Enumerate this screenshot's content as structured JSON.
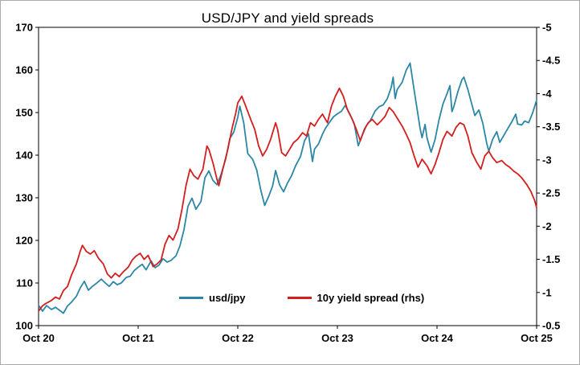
{
  "chart_data": {
    "type": "line",
    "title": "USD/JPY and yield spreads",
    "grid": false,
    "legend_position": "inside-bottom-center",
    "x_axis": {
      "min": 0,
      "max": 5,
      "ticks": [
        0,
        1,
        2,
        3,
        4,
        5
      ],
      "labels": [
        "Oct 20",
        "Oct 21",
        "Oct 22",
        "Oct 23",
        "Oct 24",
        "Oct 25"
      ]
    },
    "left_axis": {
      "min": 100,
      "max": 170,
      "ticks": [
        100,
        110,
        120,
        130,
        140,
        150,
        160,
        170
      ],
      "labels": [
        "100",
        "110",
        "120",
        "130",
        "140",
        "150",
        "160",
        "170"
      ]
    },
    "right_axis": {
      "min": -0.5,
      "max": -5,
      "ticks": [
        -0.5,
        -1,
        -1.5,
        -2,
        -2.5,
        -3,
        -3.5,
        -4,
        -4.5,
        -5
      ],
      "labels": [
        "-0.5",
        "-1",
        "-1.5",
        "-2",
        "-2.5",
        "-3",
        "-3.5",
        "-4",
        "-4.5",
        "-5"
      ]
    },
    "series": [
      {
        "name": "usd/jpy",
        "axis": "left",
        "color": "#2b87a5",
        "points": [
          [
            0.0,
            104.8
          ],
          [
            0.04,
            103.4
          ],
          [
            0.08,
            104.7
          ],
          [
            0.13,
            103.8
          ],
          [
            0.17,
            104.3
          ],
          [
            0.21,
            103.6
          ],
          [
            0.25,
            102.9
          ],
          [
            0.29,
            104.6
          ],
          [
            0.33,
            105.5
          ],
          [
            0.38,
            106.9
          ],
          [
            0.42,
            108.9
          ],
          [
            0.46,
            110.4
          ],
          [
            0.5,
            108.3
          ],
          [
            0.54,
            109.2
          ],
          [
            0.58,
            109.9
          ],
          [
            0.63,
            110.9
          ],
          [
            0.67,
            110.0
          ],
          [
            0.71,
            109.2
          ],
          [
            0.75,
            110.3
          ],
          [
            0.79,
            109.6
          ],
          [
            0.83,
            110.0
          ],
          [
            0.88,
            111.3
          ],
          [
            0.92,
            111.6
          ],
          [
            0.96,
            112.9
          ],
          [
            1.0,
            113.7
          ],
          [
            1.04,
            114.4
          ],
          [
            1.08,
            113.1
          ],
          [
            1.13,
            115.2
          ],
          [
            1.17,
            113.6
          ],
          [
            1.21,
            114.2
          ],
          [
            1.25,
            115.7
          ],
          [
            1.29,
            114.9
          ],
          [
            1.33,
            115.3
          ],
          [
            1.38,
            116.4
          ],
          [
            1.42,
            118.8
          ],
          [
            1.46,
            122.5
          ],
          [
            1.5,
            128.0
          ],
          [
            1.54,
            129.9
          ],
          [
            1.58,
            127.3
          ],
          [
            1.63,
            129.1
          ],
          [
            1.67,
            134.7
          ],
          [
            1.71,
            136.3
          ],
          [
            1.75,
            134.1
          ],
          [
            1.79,
            133.1
          ],
          [
            1.83,
            135.3
          ],
          [
            1.88,
            139.2
          ],
          [
            1.92,
            143.9
          ],
          [
            1.96,
            145.4
          ],
          [
            2.0,
            148.9
          ],
          [
            2.02,
            151.5
          ],
          [
            2.06,
            147.6
          ],
          [
            2.1,
            140.4
          ],
          [
            2.15,
            139.0
          ],
          [
            2.19,
            136.5
          ],
          [
            2.23,
            131.9
          ],
          [
            2.27,
            128.2
          ],
          [
            2.31,
            130.3
          ],
          [
            2.35,
            132.8
          ],
          [
            2.38,
            136.4
          ],
          [
            2.42,
            133.0
          ],
          [
            2.46,
            131.4
          ],
          [
            2.5,
            133.5
          ],
          [
            2.54,
            135.2
          ],
          [
            2.58,
            137.5
          ],
          [
            2.63,
            139.7
          ],
          [
            2.67,
            143.4
          ],
          [
            2.71,
            145.0
          ],
          [
            2.75,
            138.5
          ],
          [
            2.77,
            141.4
          ],
          [
            2.81,
            142.6
          ],
          [
            2.85,
            144.9
          ],
          [
            2.88,
            146.3
          ],
          [
            2.92,
            147.7
          ],
          [
            2.96,
            149.0
          ],
          [
            3.0,
            149.7
          ],
          [
            3.04,
            150.3
          ],
          [
            3.08,
            151.7
          ],
          [
            3.13,
            149.4
          ],
          [
            3.17,
            147.3
          ],
          [
            3.21,
            142.2
          ],
          [
            3.25,
            144.7
          ],
          [
            3.29,
            146.9
          ],
          [
            3.33,
            148.1
          ],
          [
            3.38,
            150.4
          ],
          [
            3.42,
            151.4
          ],
          [
            3.46,
            151.8
          ],
          [
            3.5,
            153.2
          ],
          [
            3.54,
            155.9
          ],
          [
            3.56,
            158.3
          ],
          [
            3.58,
            153.3
          ],
          [
            3.6,
            155.4
          ],
          [
            3.65,
            157.1
          ],
          [
            3.69,
            159.9
          ],
          [
            3.73,
            161.6
          ],
          [
            3.77,
            155.3
          ],
          [
            3.81,
            149.4
          ],
          [
            3.83,
            146.3
          ],
          [
            3.85,
            144.1
          ],
          [
            3.88,
            147.2
          ],
          [
            3.9,
            144.0
          ],
          [
            3.94,
            140.7
          ],
          [
            3.98,
            143.6
          ],
          [
            4.02,
            148.3
          ],
          [
            4.06,
            152.0
          ],
          [
            4.1,
            154.4
          ],
          [
            4.13,
            156.3
          ],
          [
            4.15,
            150.2
          ],
          [
            4.17,
            151.5
          ],
          [
            4.21,
            154.9
          ],
          [
            4.25,
            157.7
          ],
          [
            4.27,
            158.3
          ],
          [
            4.31,
            155.4
          ],
          [
            4.35,
            151.9
          ],
          [
            4.38,
            149.3
          ],
          [
            4.42,
            150.6
          ],
          [
            4.46,
            147.5
          ],
          [
            4.5,
            142.7
          ],
          [
            4.52,
            140.9
          ],
          [
            4.56,
            143.8
          ],
          [
            4.6,
            145.5
          ],
          [
            4.63,
            143.0
          ],
          [
            4.67,
            144.6
          ],
          [
            4.71,
            146.2
          ],
          [
            4.75,
            147.8
          ],
          [
            4.79,
            149.6
          ],
          [
            4.81,
            147.3
          ],
          [
            4.85,
            147.1
          ],
          [
            4.88,
            148.0
          ],
          [
            4.92,
            147.6
          ],
          [
            4.96,
            149.9
          ],
          [
            5.0,
            152.9
          ]
        ]
      },
      {
        "name": "10y yield spread (rhs)",
        "axis": "right",
        "color": "#d41e1e",
        "points": [
          [
            0.0,
            -0.72
          ],
          [
            0.04,
            -0.8
          ],
          [
            0.08,
            -0.84
          ],
          [
            0.13,
            -0.88
          ],
          [
            0.17,
            -0.93
          ],
          [
            0.21,
            -0.9
          ],
          [
            0.25,
            -1.03
          ],
          [
            0.29,
            -1.09
          ],
          [
            0.33,
            -1.26
          ],
          [
            0.38,
            -1.43
          ],
          [
            0.42,
            -1.63
          ],
          [
            0.44,
            -1.71
          ],
          [
            0.48,
            -1.62
          ],
          [
            0.52,
            -1.58
          ],
          [
            0.56,
            -1.63
          ],
          [
            0.6,
            -1.52
          ],
          [
            0.65,
            -1.43
          ],
          [
            0.69,
            -1.28
          ],
          [
            0.73,
            -1.22
          ],
          [
            0.77,
            -1.29
          ],
          [
            0.81,
            -1.24
          ],
          [
            0.85,
            -1.31
          ],
          [
            0.9,
            -1.38
          ],
          [
            0.94,
            -1.49
          ],
          [
            0.98,
            -1.55
          ],
          [
            1.02,
            -1.59
          ],
          [
            1.06,
            -1.5
          ],
          [
            1.1,
            -1.56
          ],
          [
            1.15,
            -1.39
          ],
          [
            1.19,
            -1.43
          ],
          [
            1.23,
            -1.49
          ],
          [
            1.27,
            -1.73
          ],
          [
            1.31,
            -1.86
          ],
          [
            1.35,
            -1.79
          ],
          [
            1.4,
            -1.96
          ],
          [
            1.44,
            -2.26
          ],
          [
            1.48,
            -2.61
          ],
          [
            1.52,
            -2.86
          ],
          [
            1.56,
            -2.76
          ],
          [
            1.6,
            -2.71
          ],
          [
            1.65,
            -2.86
          ],
          [
            1.69,
            -3.21
          ],
          [
            1.71,
            -3.16
          ],
          [
            1.75,
            -2.96
          ],
          [
            1.79,
            -2.71
          ],
          [
            1.81,
            -2.61
          ],
          [
            1.85,
            -2.86
          ],
          [
            1.9,
            -3.16
          ],
          [
            1.94,
            -3.46
          ],
          [
            1.98,
            -3.71
          ],
          [
            2.0,
            -3.86
          ],
          [
            2.04,
            -3.96
          ],
          [
            2.08,
            -3.81
          ],
          [
            2.13,
            -3.61
          ],
          [
            2.17,
            -3.46
          ],
          [
            2.21,
            -3.21
          ],
          [
            2.25,
            -3.06
          ],
          [
            2.29,
            -3.16
          ],
          [
            2.33,
            -3.31
          ],
          [
            2.38,
            -3.56
          ],
          [
            2.4,
            -3.46
          ],
          [
            2.44,
            -3.11
          ],
          [
            2.48,
            -3.06
          ],
          [
            2.52,
            -3.16
          ],
          [
            2.56,
            -3.26
          ],
          [
            2.6,
            -3.31
          ],
          [
            2.65,
            -3.41
          ],
          [
            2.69,
            -3.36
          ],
          [
            2.73,
            -3.56
          ],
          [
            2.77,
            -3.51
          ],
          [
            2.81,
            -3.61
          ],
          [
            2.85,
            -3.69
          ],
          [
            2.9,
            -3.56
          ],
          [
            2.94,
            -3.81
          ],
          [
            2.98,
            -3.96
          ],
          [
            3.02,
            -4.08
          ],
          [
            3.06,
            -3.96
          ],
          [
            3.1,
            -3.76
          ],
          [
            3.15,
            -3.61
          ],
          [
            3.19,
            -3.46
          ],
          [
            3.23,
            -3.29
          ],
          [
            3.27,
            -3.46
          ],
          [
            3.31,
            -3.56
          ],
          [
            3.35,
            -3.61
          ],
          [
            3.4,
            -3.53
          ],
          [
            3.44,
            -3.59
          ],
          [
            3.48,
            -3.66
          ],
          [
            3.52,
            -3.79
          ],
          [
            3.56,
            -3.73
          ],
          [
            3.6,
            -3.63
          ],
          [
            3.65,
            -3.51
          ],
          [
            3.69,
            -3.39
          ],
          [
            3.73,
            -3.26
          ],
          [
            3.77,
            -3.06
          ],
          [
            3.81,
            -2.89
          ],
          [
            3.85,
            -3.01
          ],
          [
            3.9,
            -2.91
          ],
          [
            3.94,
            -2.79
          ],
          [
            3.98,
            -2.93
          ],
          [
            4.02,
            -3.11
          ],
          [
            4.06,
            -3.31
          ],
          [
            4.1,
            -3.43
          ],
          [
            4.15,
            -3.36
          ],
          [
            4.19,
            -3.49
          ],
          [
            4.23,
            -3.56
          ],
          [
            4.27,
            -3.53
          ],
          [
            4.31,
            -3.36
          ],
          [
            4.35,
            -3.11
          ],
          [
            4.4,
            -2.96
          ],
          [
            4.44,
            -2.86
          ],
          [
            4.48,
            -3.06
          ],
          [
            4.52,
            -3.13
          ],
          [
            4.56,
            -3.03
          ],
          [
            4.6,
            -2.96
          ],
          [
            4.65,
            -2.99
          ],
          [
            4.69,
            -2.93
          ],
          [
            4.73,
            -2.89
          ],
          [
            4.77,
            -2.83
          ],
          [
            4.81,
            -2.79
          ],
          [
            4.85,
            -2.73
          ],
          [
            4.9,
            -2.63
          ],
          [
            4.94,
            -2.53
          ],
          [
            4.98,
            -2.39
          ],
          [
            5.0,
            -2.28
          ]
        ]
      }
    ]
  }
}
